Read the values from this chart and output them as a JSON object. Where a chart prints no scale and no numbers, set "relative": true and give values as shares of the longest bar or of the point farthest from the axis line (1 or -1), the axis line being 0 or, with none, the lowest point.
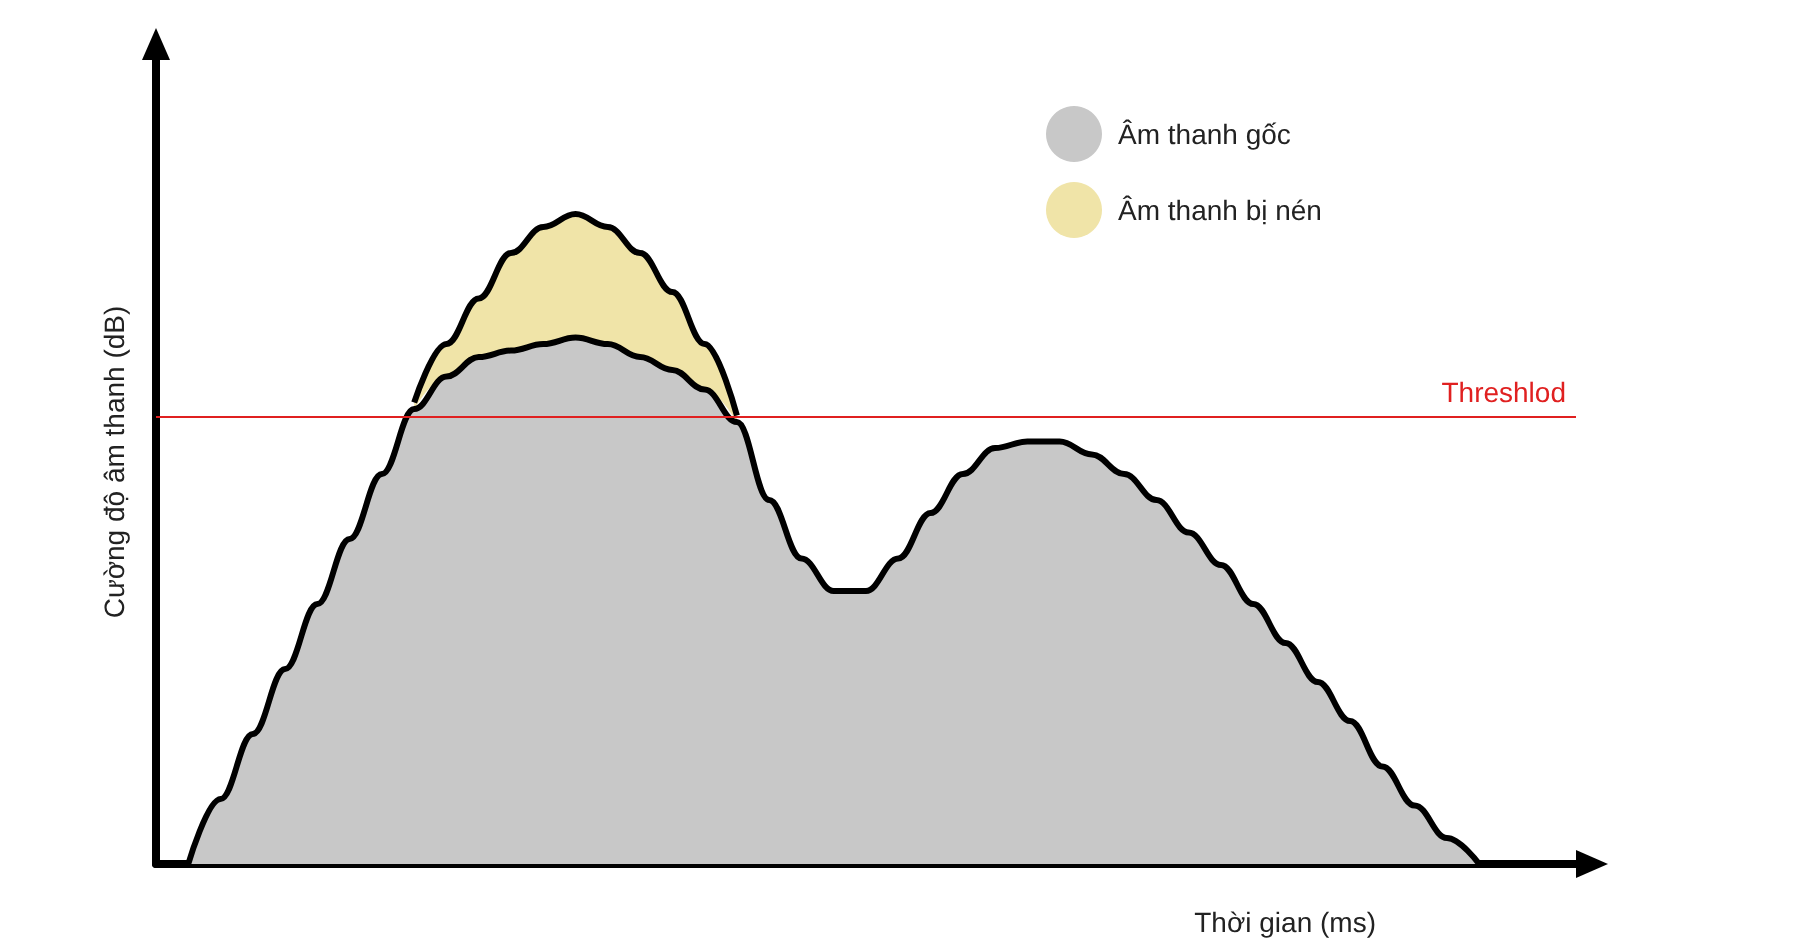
{
  "chart_data": {
    "type": "area",
    "relative": true,
    "stacked": true,
    "xlabel": "Thời gian (ms)",
    "ylabel": "Cường độ âm thanh (dB)",
    "categories": [
      null,
      null,
      null,
      null,
      null,
      null,
      null,
      null,
      null,
      null,
      null,
      null,
      null,
      null,
      null,
      null,
      null,
      null,
      null,
      null,
      null,
      null,
      null,
      null,
      null,
      null,
      null,
      null,
      null,
      null,
      null,
      null,
      null,
      null,
      null,
      null,
      null,
      null,
      null,
      null,
      null,
      null,
      null,
      null,
      null
    ],
    "series": [
      {
        "name": "Âm thanh gốc",
        "color": "#c8c8c8",
        "values": [
          null,
          0,
          0.1,
          0.2,
          0.3,
          0.4,
          0.5,
          0.6,
          0.7,
          0.75,
          0.78,
          0.79,
          0.8,
          0.81,
          0.8,
          0.78,
          0.76,
          0.73,
          0.68,
          0.56,
          0.47,
          0.42,
          0.42,
          0.47,
          0.54,
          0.6,
          0.64,
          0.65,
          0.65,
          0.63,
          0.6,
          0.56,
          0.51,
          0.46,
          0.4,
          0.34,
          0.28,
          0.22,
          0.15,
          0.09,
          0.04,
          0,
          null,
          null,
          null
        ]
      },
      {
        "name": "Âm thanh bị nén",
        "color": "#f0e4a8",
        "values": [
          null,
          null,
          null,
          null,
          null,
          null,
          null,
          null,
          0.01,
          0.05,
          0.09,
          0.15,
          0.18,
          0.19,
          0.18,
          0.16,
          0.12,
          0.07,
          0.01,
          null,
          null,
          null,
          null,
          null,
          null,
          null,
          null,
          null,
          null,
          null,
          null,
          null,
          null,
          null,
          null,
          null,
          null,
          null,
          null,
          null,
          null,
          null,
          null,
          null,
          null
        ]
      }
    ],
    "ref_lines": [
      {
        "axis": "y",
        "value": 0.692,
        "label": "Threshlod",
        "color": "#e02020"
      }
    ],
    "legend": "top right",
    "grid": false,
    "marker": "none"
  }
}
